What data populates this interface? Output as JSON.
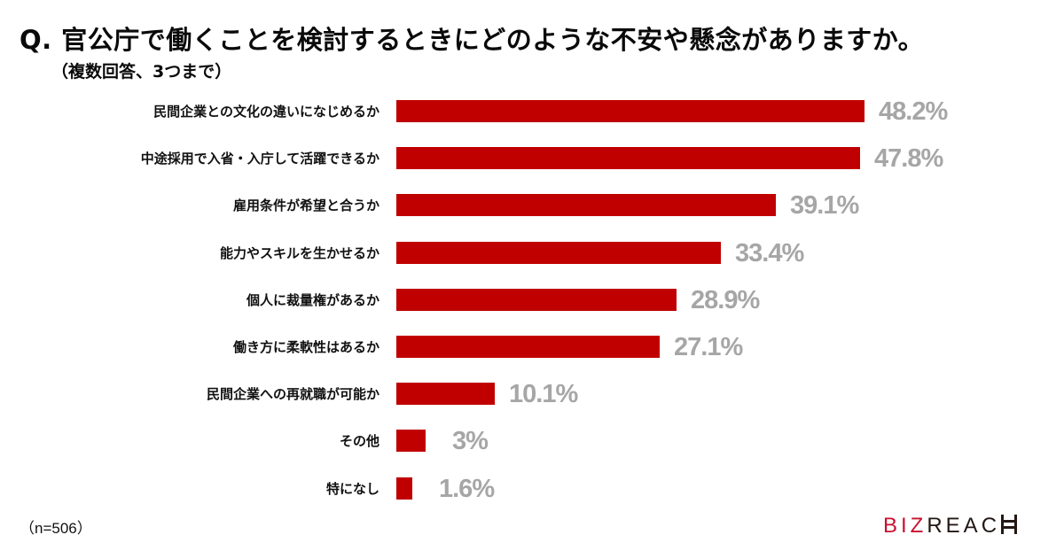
{
  "title": "Q. 官公庁で働くことを検討するときにどのような不安や懸念がありますか。",
  "subtitle": "（複数回答、3つまで）",
  "note": "（n=506）",
  "logo": {
    "part1": "BIZ",
    "part2": "REAC",
    "brand_color": "#c8102e",
    "text_color": "#231815"
  },
  "colors": {
    "bar": "#c00000",
    "value_label": "#a6a6a6"
  },
  "rows": [
    {
      "label": "民間企業との文化の違いになじめるか",
      "value": 48.2,
      "value_label": "48.2%"
    },
    {
      "label": "中途採用で入省・入庁して活躍できるか",
      "value": 47.8,
      "value_label": "47.8%"
    },
    {
      "label": "雇用条件が希望と合うか",
      "value": 39.1,
      "value_label": "39.1%"
    },
    {
      "label": "能力やスキルを生かせるか",
      "value": 33.4,
      "value_label": "33.4%"
    },
    {
      "label": "個人に裁量権があるか",
      "value": 28.9,
      "value_label": "28.9%"
    },
    {
      "label": "働き方に柔軟性はあるか",
      "value": 27.1,
      "value_label": "27.1%"
    },
    {
      "label": "民間企業への再就職が可能か",
      "value": 10.1,
      "value_label": "10.1%"
    },
    {
      "label": "その他",
      "value": 3,
      "value_label": "3%"
    },
    {
      "label": "特になし",
      "value": 1.6,
      "value_label": "1.6%"
    }
  ],
  "chart_data": {
    "type": "bar",
    "orientation": "horizontal",
    "title": "Q. 官公庁で働くことを検討するときにどのような不安や懸念がありますか。",
    "subtitle": "（複数回答、3つまで）",
    "categories": [
      "民間企業との文化の違いになじめるか",
      "中途採用で入省・入庁して活躍できるか",
      "雇用条件が希望と合うか",
      "能力やスキルを生かせるか",
      "個人に裁量権があるか",
      "働き方に柔軟性はあるか",
      "民間企業への再就職が可能か",
      "その他",
      "特になし"
    ],
    "values": [
      48.2,
      47.8,
      39.1,
      33.4,
      28.9,
      27.1,
      10.1,
      3,
      1.6
    ],
    "unit": "%",
    "xlabel": "",
    "ylabel": "",
    "grid": false,
    "legend": null,
    "annotations": [
      "（n=506）"
    ]
  }
}
